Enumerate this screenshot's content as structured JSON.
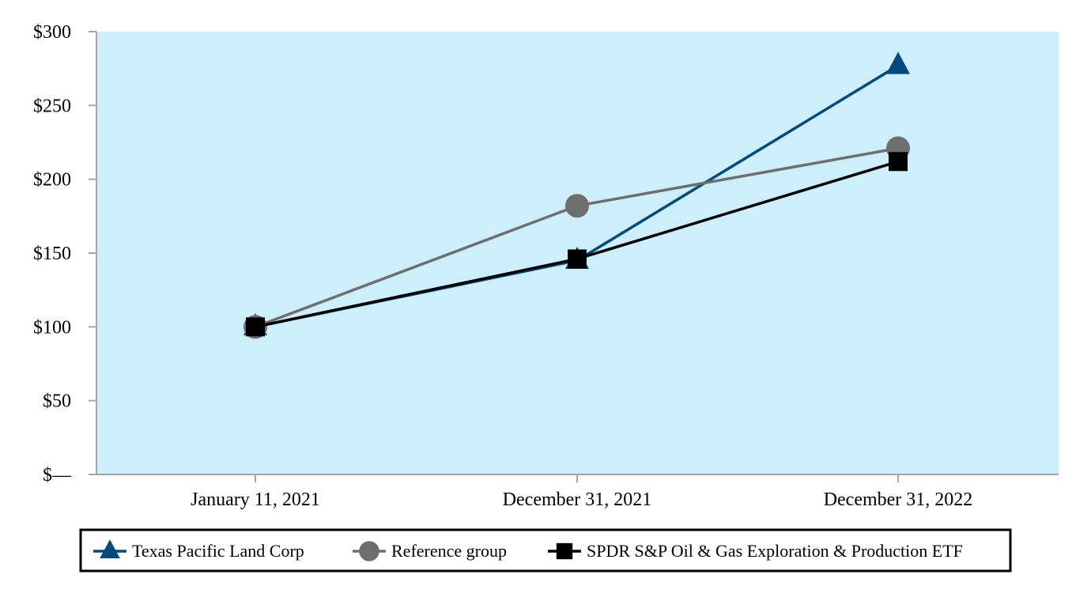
{
  "chart_data": {
    "type": "line",
    "title": "",
    "xlabel": "",
    "ylabel": "",
    "categories": [
      "January 11, 2021",
      "December 31, 2021",
      "December 31, 2022"
    ],
    "ylim": [
      0,
      300
    ],
    "yticks": [
      0,
      50,
      100,
      150,
      200,
      250,
      300
    ],
    "ytick_labels": [
      "$—",
      "$50",
      "$100",
      "$150",
      "$200",
      "$250",
      "$300"
    ],
    "grid": false,
    "plot_background": "#cdeefd",
    "legend_position": "bottom",
    "series": [
      {
        "name": "Texas Pacific Land Corp",
        "marker": "triangle",
        "color": "#004a80",
        "values": [
          100,
          145,
          277
        ]
      },
      {
        "name": "Reference group",
        "marker": "circle",
        "color": "#6e6e6e",
        "values": [
          100,
          182,
          221
        ]
      },
      {
        "name": "SPDR S&P Oil & Gas Exploration & Production ETF",
        "marker": "square",
        "color": "#000000",
        "values": [
          100,
          146,
          212
        ]
      }
    ]
  }
}
